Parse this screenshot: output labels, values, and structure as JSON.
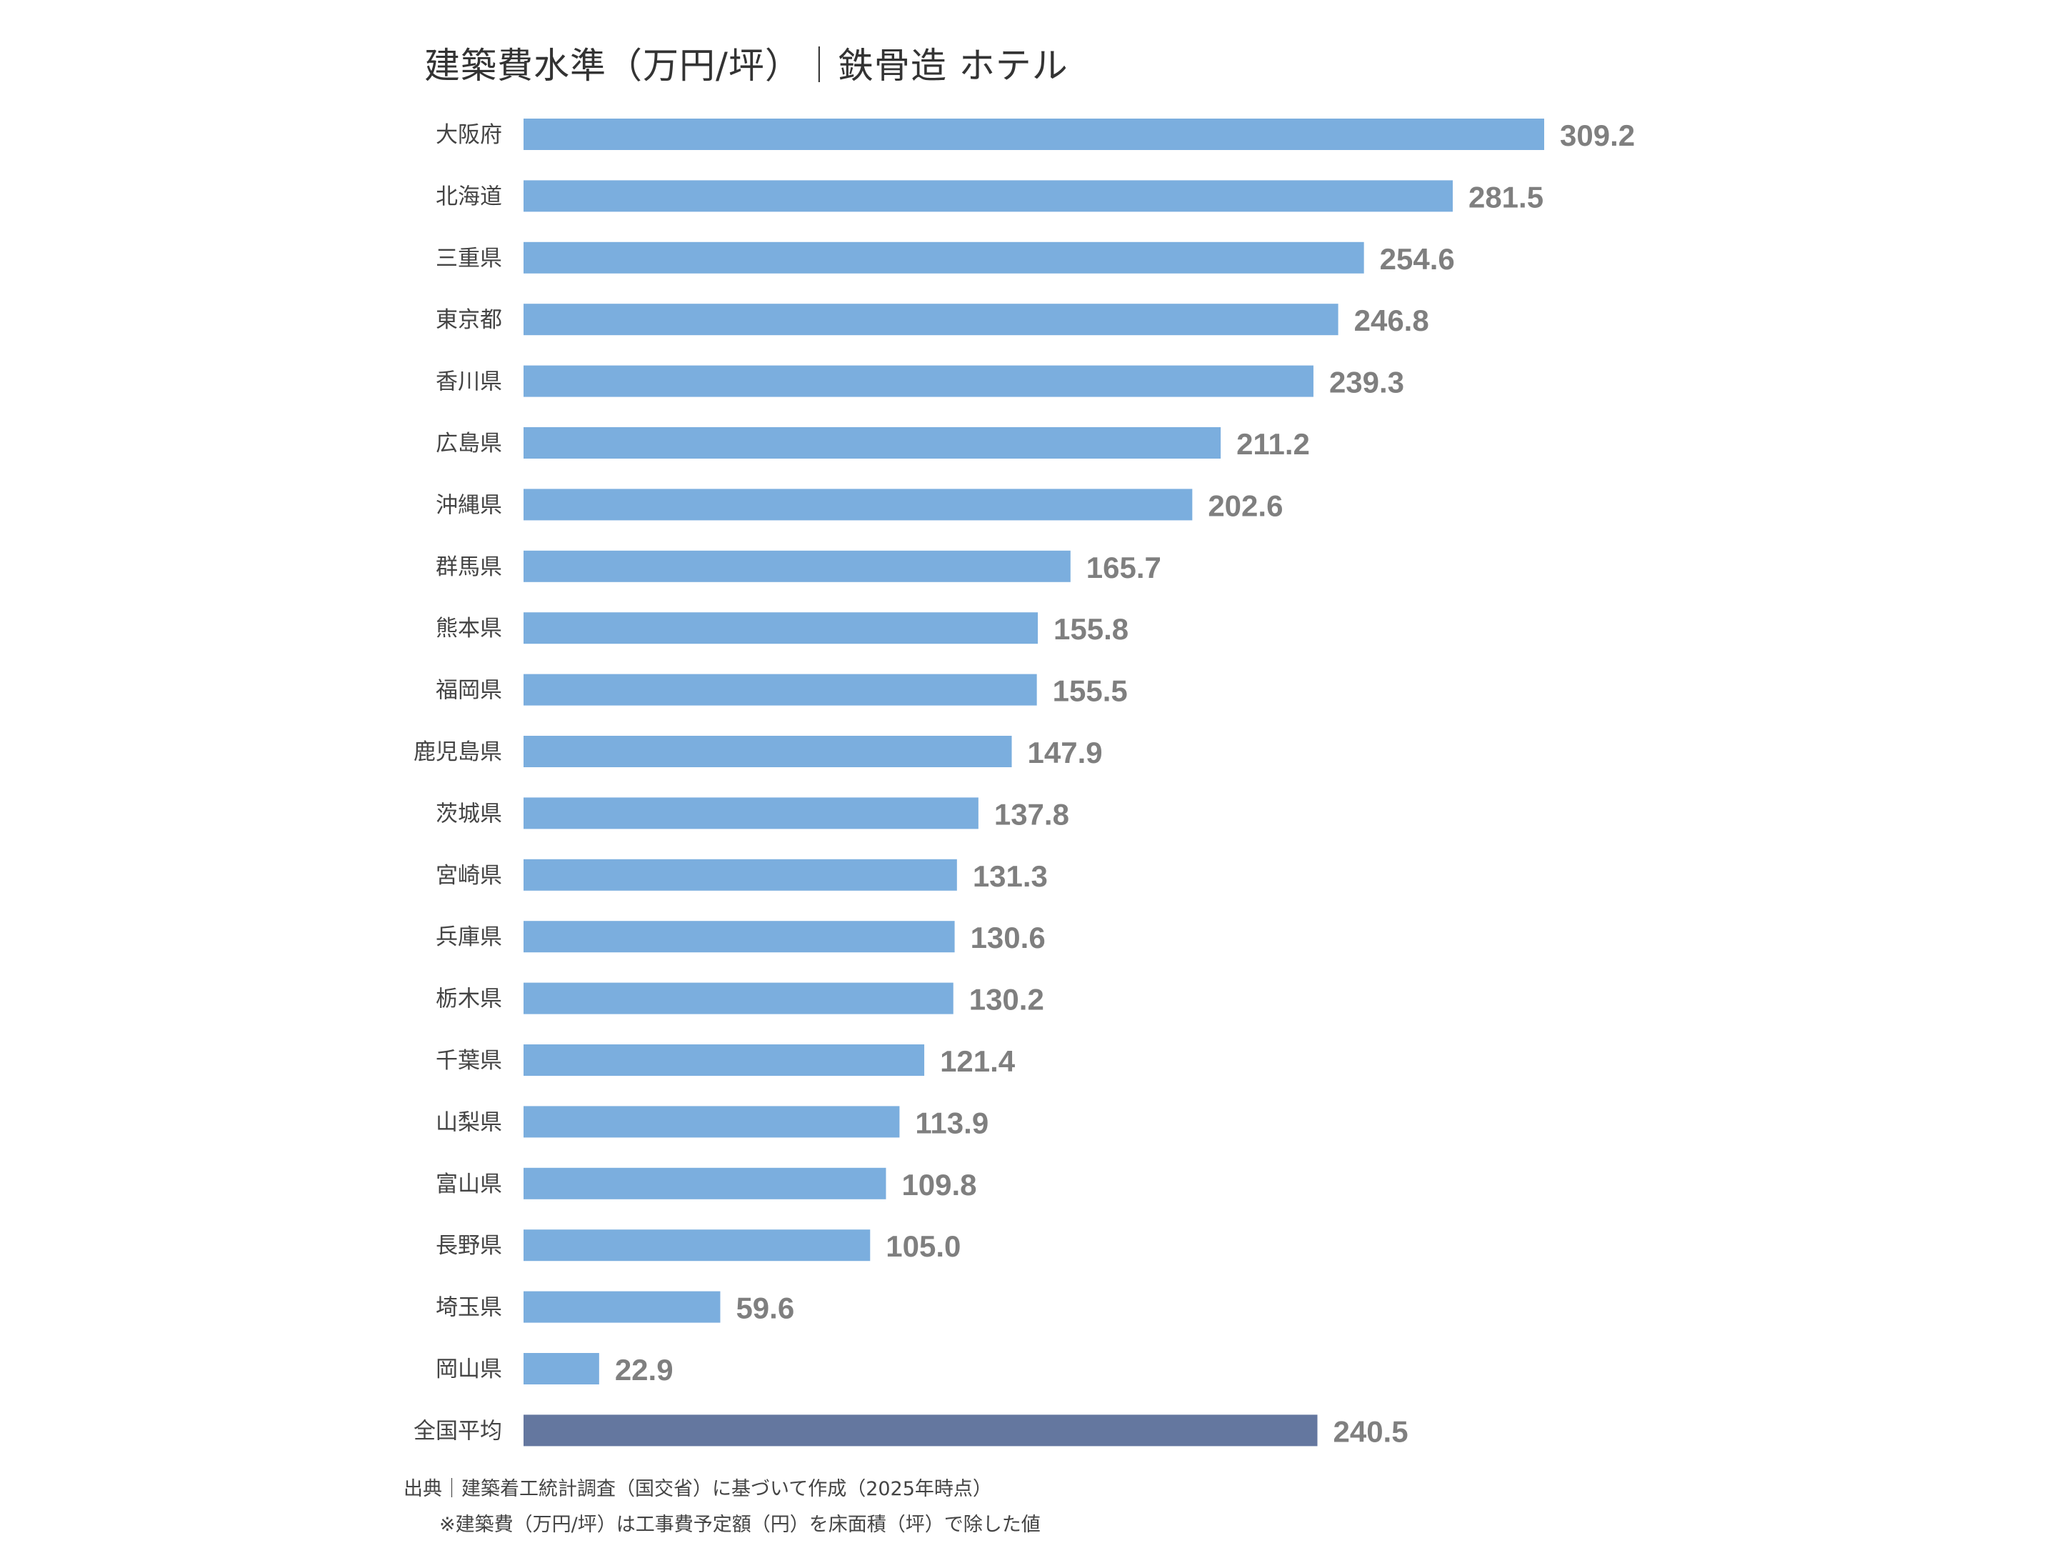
{
  "chart_data": {
    "type": "bar",
    "orientation": "horizontal",
    "title": "建築費水準（万円/坪）｜鉄骨造 ホテル",
    "categories": [
      "大阪府",
      "北海道",
      "三重県",
      "東京都",
      "香川県",
      "広島県",
      "沖縄県",
      "群馬県",
      "熊本県",
      "福岡県",
      "鹿児島県",
      "茨城県",
      "宮崎県",
      "兵庫県",
      "栃木県",
      "千葉県",
      "山梨県",
      "富山県",
      "長野県",
      "埼玉県",
      "岡山県",
      "全国平均"
    ],
    "values": [
      309.2,
      281.5,
      254.6,
      246.8,
      239.3,
      211.2,
      202.6,
      165.7,
      155.8,
      155.5,
      147.9,
      137.8,
      131.3,
      130.6,
      130.2,
      121.4,
      113.9,
      109.8,
      105.0,
      59.6,
      22.9,
      240.5
    ],
    "value_labels": [
      "309.2",
      "281.5",
      "254.6",
      "246.8",
      "239.3",
      "211.2",
      "202.6",
      "165.7",
      "155.8",
      "155.5",
      "147.9",
      "137.8",
      "131.3",
      "130.6",
      "130.2",
      "121.4",
      "113.9",
      "109.8",
      "105.0",
      "59.6",
      "22.9",
      "240.5"
    ],
    "xlim": [
      0,
      309.2
    ],
    "grid": false,
    "colors": {
      "bar": "#7BAEDE",
      "highlight": "#64779F",
      "value_label": "#7F7F7F",
      "category_label": "#444444"
    },
    "highlight_category": "全国平均"
  },
  "footer": {
    "source": "出典｜建築着工統計調査（国交省）に基づいて作成（2025年時点）",
    "note": "※建築費（万円/坪）は工事費予定額（円）を床面積（坪）で除した値"
  }
}
